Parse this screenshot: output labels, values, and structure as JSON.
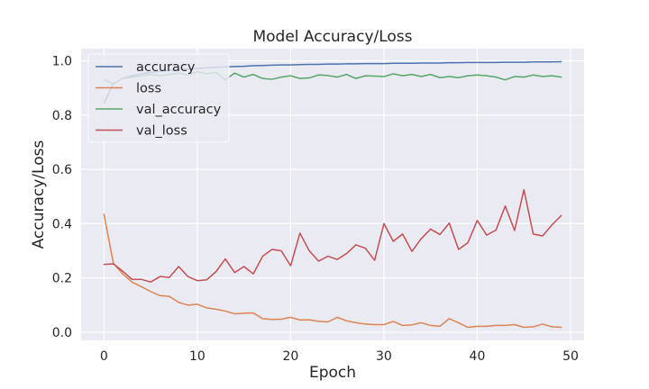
{
  "chart_data": {
    "type": "line",
    "title": "Model Accuracy/Loss",
    "xlabel": "Epoch",
    "ylabel": "Accuracy/Loss",
    "xlim": [
      -2.45,
      51.45
    ],
    "ylim": [
      -0.03,
      1.045
    ],
    "xticks": [
      0,
      10,
      20,
      30,
      40,
      50
    ],
    "yticks": [
      0.0,
      0.2,
      0.4,
      0.6,
      0.8,
      1.0
    ],
    "xtick_labels": [
      "0",
      "10",
      "20",
      "30",
      "40",
      "50"
    ],
    "ytick_labels": [
      "0.0",
      "0.2",
      "0.4",
      "0.6",
      "0.8",
      "1.0"
    ],
    "grid": true,
    "legend_position": "upper-left",
    "x": [
      0,
      1,
      2,
      3,
      4,
      5,
      6,
      7,
      8,
      9,
      10,
      11,
      12,
      13,
      14,
      15,
      16,
      17,
      18,
      19,
      20,
      21,
      22,
      23,
      24,
      25,
      26,
      27,
      28,
      29,
      30,
      31,
      32,
      33,
      34,
      35,
      36,
      37,
      38,
      39,
      40,
      41,
      42,
      43,
      44,
      45,
      46,
      47,
      48,
      49
    ],
    "series": [
      {
        "name": "accuracy",
        "color": "#4c72b0",
        "values": [
          0.845,
          0.915,
          0.935,
          0.945,
          0.952,
          0.958,
          0.962,
          0.965,
          0.968,
          0.97,
          0.972,
          0.974,
          0.976,
          0.978,
          0.979,
          0.98,
          0.982,
          0.983,
          0.984,
          0.985,
          0.985,
          0.986,
          0.987,
          0.987,
          0.988,
          0.988,
          0.989,
          0.989,
          0.99,
          0.99,
          0.99,
          0.991,
          0.991,
          0.991,
          0.992,
          0.992,
          0.992,
          0.993,
          0.993,
          0.994,
          0.994,
          0.994,
          0.994,
          0.995,
          0.995,
          0.995,
          0.996,
          0.996,
          0.996,
          0.997
        ]
      },
      {
        "name": "loss",
        "color": "#dd8452",
        "values": [
          0.435,
          0.255,
          0.215,
          0.185,
          0.168,
          0.15,
          0.135,
          0.132,
          0.11,
          0.1,
          0.103,
          0.09,
          0.085,
          0.078,
          0.068,
          0.07,
          0.071,
          0.05,
          0.047,
          0.048,
          0.055,
          0.045,
          0.046,
          0.04,
          0.038,
          0.055,
          0.042,
          0.035,
          0.03,
          0.028,
          0.028,
          0.04,
          0.025,
          0.027,
          0.035,
          0.025,
          0.022,
          0.05,
          0.035,
          0.018,
          0.022,
          0.022,
          0.025,
          0.025,
          0.028,
          0.018,
          0.02,
          0.03,
          0.02,
          0.018
        ]
      },
      {
        "name": "val_accuracy",
        "color": "#55a868",
        "values": [
          0.93,
          0.915,
          0.935,
          0.94,
          0.945,
          0.95,
          0.945,
          0.95,
          0.955,
          0.948,
          0.96,
          0.952,
          0.958,
          0.93,
          0.955,
          0.94,
          0.95,
          0.935,
          0.932,
          0.94,
          0.945,
          0.935,
          0.937,
          0.948,
          0.946,
          0.94,
          0.95,
          0.935,
          0.945,
          0.944,
          0.942,
          0.952,
          0.945,
          0.95,
          0.942,
          0.95,
          0.938,
          0.942,
          0.938,
          0.945,
          0.948,
          0.945,
          0.94,
          0.93,
          0.942,
          0.94,
          0.948,
          0.942,
          0.945,
          0.94
        ]
      },
      {
        "name": "val_loss",
        "color": "#c44e52",
        "values": [
          0.25,
          0.252,
          0.225,
          0.195,
          0.195,
          0.185,
          0.205,
          0.202,
          0.242,
          0.205,
          0.19,
          0.193,
          0.223,
          0.27,
          0.22,
          0.242,
          0.215,
          0.28,
          0.305,
          0.3,
          0.245,
          0.365,
          0.3,
          0.262,
          0.28,
          0.268,
          0.29,
          0.322,
          0.31,
          0.265,
          0.4,
          0.335,
          0.362,
          0.298,
          0.345,
          0.38,
          0.36,
          0.402,
          0.305,
          0.33,
          0.412,
          0.358,
          0.376,
          0.465,
          0.375,
          0.525,
          0.362,
          0.355,
          0.395,
          0.43
        ]
      }
    ]
  }
}
